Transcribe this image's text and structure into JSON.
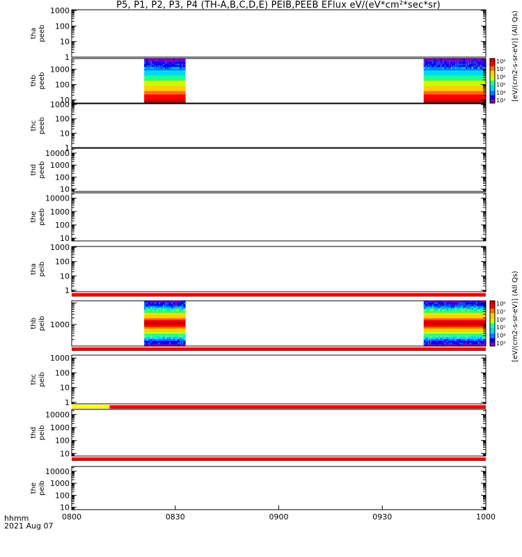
{
  "title": "P5, P1, P2, P3, P4 (TH-A,B,C,D,E) PEIB,PEEB EFlux eV/(eV*cm²*sec*sr)",
  "footer": {
    "time_label": "hhmm",
    "date_label": "2021 Aug 07"
  },
  "colors": {
    "red_bar": "#f00000",
    "yellow_bar": "#ffff00",
    "spectrogram_colormap": [
      "#8a00c0",
      "#0000ff",
      "#0080ff",
      "#00d8ff",
      "#20ff90",
      "#c8ff00",
      "#ffd000",
      "#ff7000",
      "#ff0000",
      "#d00000"
    ]
  },
  "colorbar": {
    "unit_label": "[eV/(cm2-s-sr-eV)]",
    "note": "(All Qs)",
    "ticks": [
      "10³",
      "10⁴",
      "10⁵",
      "10⁶",
      "10⁷",
      "10⁸"
    ]
  },
  "chart_data": {
    "type": "heatmap",
    "x_axis": {
      "range": [
        "0800",
        "1000"
      ],
      "ticks": [
        "0800",
        "0830",
        "0900",
        "0930",
        "1000"
      ],
      "tick_minutes": [
        0,
        30,
        60,
        90,
        120
      ]
    },
    "panels": [
      {
        "probe": "tha",
        "instrument": "peeb",
        "yticks": [
          "1000",
          "100",
          "10",
          "1"
        ],
        "ylog": [
          0,
          3.05
        ],
        "data_intervals": []
      },
      {
        "probe": "thb",
        "instrument": "peeb",
        "yticks": [
          "1000",
          "100",
          "10"
        ],
        "ylog": [
          0.8,
          3.7
        ],
        "data_intervals": [
          [
            "0821",
            "0833"
          ],
          [
            "0942",
            "1000"
          ]
        ],
        "colorbar": true
      },
      {
        "probe": "thc",
        "instrument": "peeb",
        "yticks": [
          "1000",
          "100",
          "10",
          "1"
        ],
        "ylog": [
          0,
          3.05
        ],
        "data_intervals": []
      },
      {
        "probe": "thd",
        "instrument": "peeb",
        "yticks": [
          "10000",
          "1000",
          "100",
          "10"
        ],
        "ylog": [
          0.8,
          4.4
        ],
        "data_intervals": []
      },
      {
        "probe": "the",
        "instrument": "peeb",
        "yticks": [
          "10000",
          "1000",
          "100",
          "10"
        ],
        "ylog": [
          0.8,
          4.4
        ],
        "data_intervals": []
      },
      {
        "probe": "tha",
        "instrument": "peib",
        "yticks": [
          "1000",
          "100",
          "10",
          "1"
        ],
        "ylog": [
          -0.1,
          3.05
        ],
        "data_intervals": [],
        "bar_below": [
          {
            "from": "0800",
            "to": "1000",
            "color": "red"
          }
        ]
      },
      {
        "probe": "thb",
        "instrument": "peib",
        "yticks": [
          "1000"
        ],
        "ylog": [
          2.0,
          4.1
        ],
        "data_intervals": [
          [
            "0821",
            "0833"
          ],
          [
            "0942",
            "1000"
          ]
        ],
        "colorbar": true,
        "bar_below": [
          {
            "from": "0800",
            "to": "1000",
            "color": "red"
          }
        ]
      },
      {
        "probe": "thc",
        "instrument": "peib",
        "yticks": [
          "1000",
          "100",
          "10",
          "1"
        ],
        "ylog": [
          -0.1,
          3.2
        ],
        "data_intervals": [],
        "bar_below": [
          {
            "from": "0800",
            "to": "0811",
            "color": "yellow"
          },
          {
            "from": "0811",
            "to": "1000",
            "color": "red"
          }
        ]
      },
      {
        "probe": "thd",
        "instrument": "peib",
        "yticks": [
          "10000",
          "1000",
          "100",
          "10"
        ],
        "ylog": [
          0.8,
          4.4
        ],
        "data_intervals": [],
        "bar_below": [
          {
            "from": "0800",
            "to": "1000",
            "color": "red"
          }
        ]
      },
      {
        "probe": "the",
        "instrument": "peib",
        "yticks": [
          "10000",
          "1000",
          "100",
          "10"
        ],
        "ylog": [
          0.8,
          4.4
        ],
        "data_intervals": []
      }
    ]
  }
}
